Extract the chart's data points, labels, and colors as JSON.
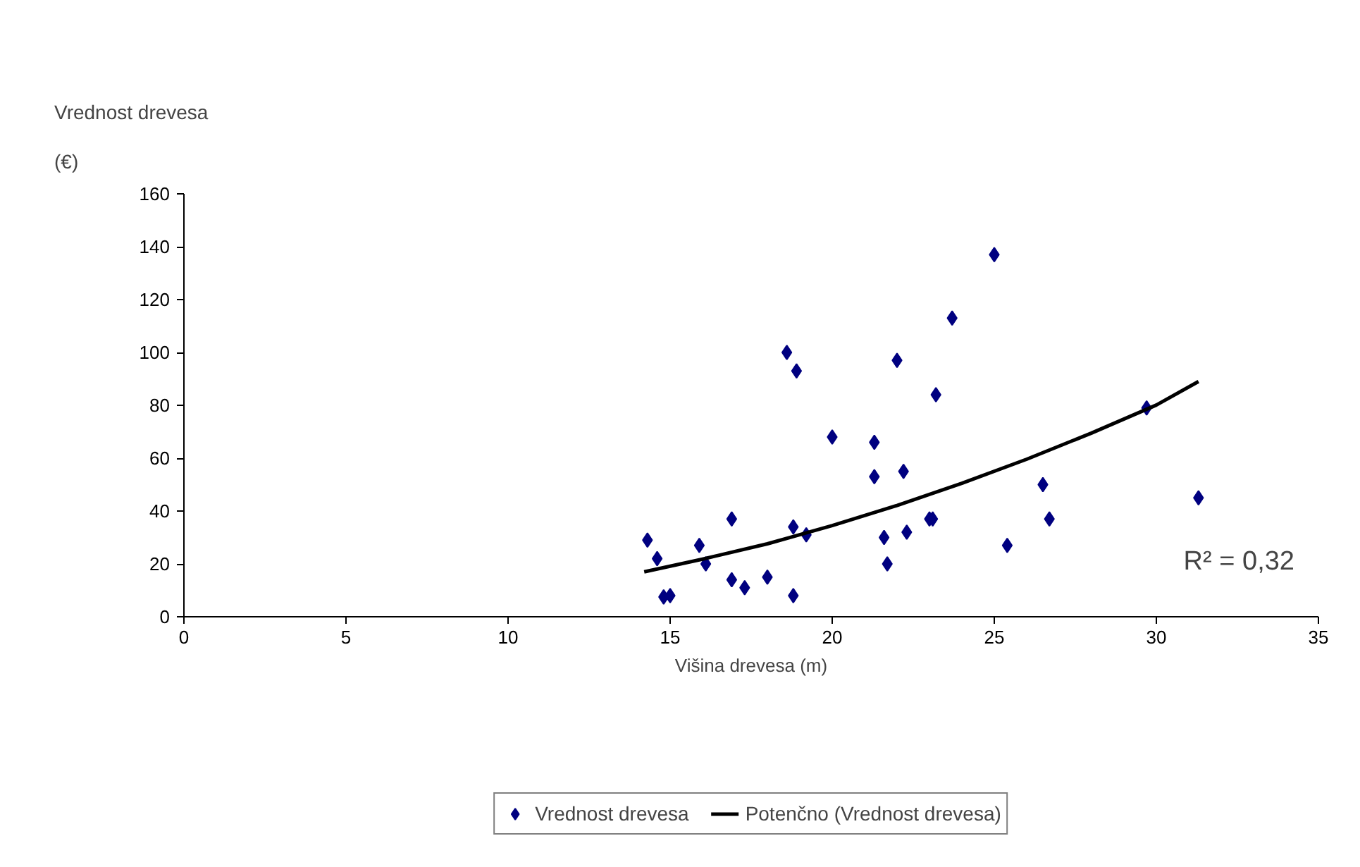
{
  "chart_data": {
    "type": "scatter",
    "ylabel": "Vrednost drevesa\n(€)",
    "xlabel": "Višina drevesa (m)",
    "annotations": [
      "R² = 0,32"
    ],
    "xlim": [
      0,
      35
    ],
    "xticks": [
      0,
      5,
      10,
      15,
      20,
      25,
      30,
      35
    ],
    "ylim": [
      0,
      160
    ],
    "yticks": [
      0,
      20,
      40,
      60,
      80,
      100,
      120,
      140,
      160
    ],
    "grid": false,
    "legend": "bottom",
    "series": [
      {
        "name": "Vrednost drevesa",
        "marker": "diamond",
        "color": "#000080",
        "x": [
          14.3,
          14.6,
          14.8,
          15.0,
          15.9,
          16.1,
          16.9,
          16.9,
          17.3,
          18.0,
          18.6,
          18.9,
          18.8,
          18.8,
          19.2,
          20.0,
          21.3,
          21.3,
          21.6,
          21.7,
          22.0,
          22.2,
          22.3,
          23.0,
          23.1,
          23.2,
          23.7,
          25.0,
          26.5,
          26.7,
          25.4,
          29.7,
          31.3
        ],
        "values": [
          29,
          22,
          7.5,
          8,
          27,
          20,
          37,
          14,
          11,
          15,
          100,
          93,
          34,
          8,
          31,
          68,
          66,
          53,
          30,
          20,
          97,
          55,
          32,
          37,
          37,
          84,
          113,
          137,
          50,
          37,
          27,
          79,
          45
        ]
      },
      {
        "name": "Potenčno (Vrednost drevesa)",
        "type": "line",
        "line_style": "solid",
        "color": "#000000",
        "x": [
          14.2,
          16,
          18,
          20,
          22,
          24,
          26,
          28,
          30,
          31.3
        ],
        "values": [
          17,
          21.8,
          27.6,
          34.5,
          42.1,
          50.5,
          59.6,
          69.5,
          80.1,
          89
        ]
      }
    ]
  }
}
